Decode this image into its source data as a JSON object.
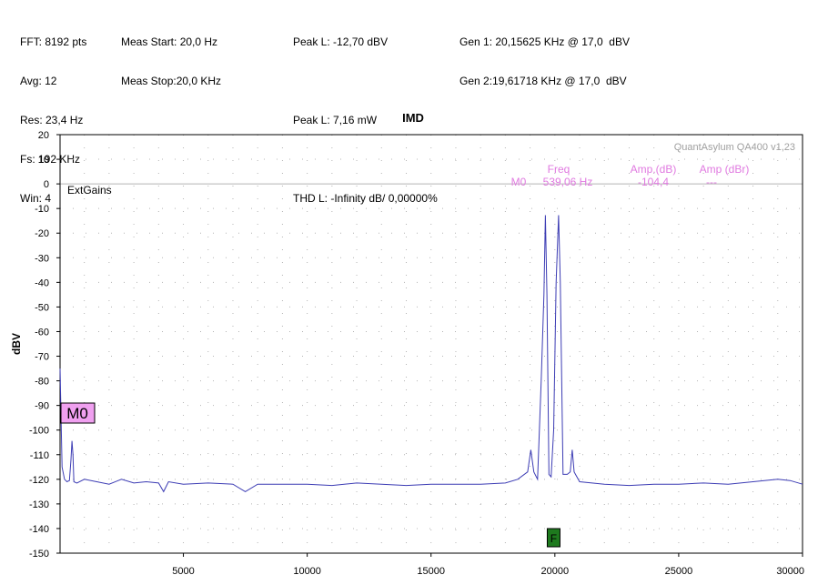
{
  "header": {
    "col1": [
      "FFT: 8192 pts",
      "Avg: 12",
      "Res: 23,4 Hz",
      "Fs: 192 KHz",
      "Win: 4"
    ],
    "col2": [
      "Meas Start: 20,0 Hz",
      "Meas Stop:20,0 KHz"
    ],
    "col3": [
      "Peak L: -12,70 dBV",
      "",
      "Peak L: 7,16 mW",
      "",
      "THD L: -Infinity dB/ 0,00000%"
    ],
    "col4": [
      "Gen 1: 20,15625 KHz @ 17,0  dBV",
      "Gen 2:19,61718 KHz @ 17,0  dBV"
    ]
  },
  "overlay": {
    "watermark": "QuantAsylum QA400 v1,23",
    "extgains": "ExtGains",
    "marker_table": {
      "head_freq": "Freq",
      "head_amp_db": "Amp.(dB)",
      "head_amp_dbr": "Amp (dBr)",
      "row_name": "M0",
      "row_freq": "539,06 Hz",
      "row_amp_db": "-104,4",
      "row_amp_dbr": "---"
    },
    "marker_label": "M0",
    "freq_marker_label": "F"
  },
  "colors": {
    "trace": "#3c3cb4",
    "grid": "#b4b4b4",
    "marker_fill": "#f0a0f0",
    "freq_marker_fill": "#1e7a1e",
    "annotation": "#e07ae0"
  },
  "chart_data": {
    "type": "line",
    "title": "IMD",
    "ylabel": "dBV",
    "xlabel": "",
    "xlim": [
      20,
      30000
    ],
    "ylim": [
      -150,
      20
    ],
    "xticks": [
      5000,
      10000,
      15000,
      20000,
      25000,
      30000
    ],
    "yticks": [
      20,
      10,
      0,
      -10,
      -20,
      -30,
      -40,
      -50,
      -60,
      -70,
      -80,
      -90,
      -100,
      -110,
      -120,
      -130,
      -140,
      -150
    ],
    "grid": true,
    "series": [
      {
        "points": [
          [
            20,
            -75
          ],
          [
            60,
            -95
          ],
          [
            100,
            -115
          ],
          [
            200,
            -120
          ],
          [
            300,
            -121
          ],
          [
            400,
            -120.5
          ],
          [
            460,
            -112
          ],
          [
            500,
            -104.4
          ],
          [
            540,
            -110
          ],
          [
            580,
            -121
          ],
          [
            700,
            -121.5
          ],
          [
            1000,
            -120
          ],
          [
            1500,
            -121
          ],
          [
            2000,
            -122
          ],
          [
            2500,
            -120
          ],
          [
            3000,
            -121.5
          ],
          [
            3500,
            -121
          ],
          [
            4000,
            -121.5
          ],
          [
            4200,
            -125
          ],
          [
            4400,
            -121
          ],
          [
            5000,
            -122
          ],
          [
            6000,
            -121.5
          ],
          [
            7000,
            -122
          ],
          [
            7500,
            -125
          ],
          [
            8000,
            -122
          ],
          [
            9000,
            -122
          ],
          [
            10000,
            -122
          ],
          [
            11000,
            -122.5
          ],
          [
            12000,
            -121.5
          ],
          [
            13000,
            -122
          ],
          [
            14000,
            -122.5
          ],
          [
            15000,
            -122
          ],
          [
            16000,
            -122
          ],
          [
            17000,
            -122
          ],
          [
            18000,
            -121.5
          ],
          [
            18500,
            -120
          ],
          [
            18900,
            -117
          ],
          [
            19030,
            -108
          ],
          [
            19150,
            -117
          ],
          [
            19300,
            -120
          ],
          [
            19450,
            -80
          ],
          [
            19560,
            -45
          ],
          [
            19617,
            -12.7
          ],
          [
            19680,
            -45
          ],
          [
            19760,
            -118
          ],
          [
            19850,
            -119
          ],
          [
            19950,
            -100
          ],
          [
            20050,
            -40
          ],
          [
            20150,
            -12.7
          ],
          [
            20220,
            -40
          ],
          [
            20330,
            -118
          ],
          [
            20500,
            -118
          ],
          [
            20620,
            -117
          ],
          [
            20700,
            -108
          ],
          [
            20780,
            -117
          ],
          [
            21000,
            -121
          ],
          [
            22000,
            -122
          ],
          [
            23000,
            -122.5
          ],
          [
            24000,
            -122
          ],
          [
            25000,
            -122
          ],
          [
            26000,
            -121.5
          ],
          [
            27000,
            -122
          ],
          [
            28000,
            -121
          ],
          [
            29000,
            -120
          ],
          [
            29500,
            -120.5
          ],
          [
            30000,
            -122
          ]
        ]
      }
    ],
    "marker": {
      "name": "M0",
      "x": 539.06,
      "y": -104.4
    },
    "freq_marker": {
      "label": "F",
      "x": 19950
    }
  }
}
